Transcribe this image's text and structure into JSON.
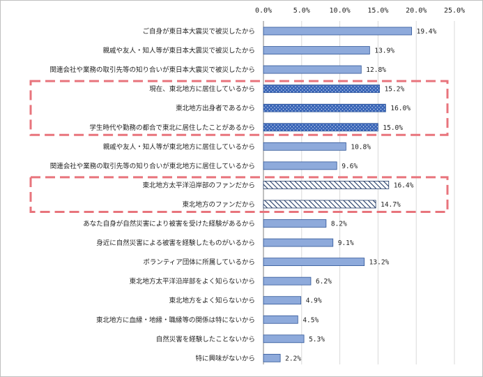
{
  "chart_data": {
    "type": "bar",
    "orientation": "horizontal",
    "categories": [
      "ご自身が東日本大震災で被災したから",
      "親戚や友人・知人等が東日本大震災で被災したから",
      "関連会社や業務の取引先等の知り合いが東日本大震災で被災したから",
      "現在、東北地方に居住しているから",
      "東北地方出身者であるから",
      "学生時代や勤務の都合で東北に居住したことがあるから",
      "親戚や友人・知人等が東北地方に居住しているから",
      "関連会社や業務の取引先等の知り合いが東北地方に居住しているから",
      "東北地方太平洋沿岸部のファンだから",
      "東北地方のファンだから",
      "あなた自身が自然災害により被害を受けた経験があるから",
      "身近に自然災害による被害を経験したものがいるから",
      "ボランティア団体に所属しているから",
      "東北地方太平洋沿岸部をよく知らないから",
      "東北地方をよく知らないから",
      "東北地方に血縁・地縁・職縁等の関係は特にないから",
      "自然災害を経験したことないから",
      "特に興味がないから"
    ],
    "values": [
      19.4,
      13.9,
      12.8,
      15.2,
      16.0,
      15.0,
      10.8,
      9.6,
      16.4,
      14.7,
      8.2,
      9.1,
      13.2,
      6.2,
      4.9,
      4.5,
      5.3,
      2.2
    ],
    "value_labels": [
      "19.4%",
      "13.9%",
      "12.8%",
      "15.2%",
      "16.0%",
      "15.0%",
      "10.8%",
      "9.6%",
      "16.4%",
      "14.7%",
      "8.2%",
      "9.1%",
      "13.2%",
      "6.2%",
      "4.9%",
      "4.5%",
      "5.3%",
      "2.2%"
    ],
    "bar_styles": [
      "solid",
      "solid",
      "solid",
      "dotted",
      "dotted",
      "dotted",
      "solid",
      "solid",
      "hatched",
      "hatched",
      "solid",
      "solid",
      "solid",
      "solid",
      "solid",
      "solid",
      "solid",
      "solid"
    ],
    "tick_labels": [
      "0.0%",
      "5.0%",
      "10.0%",
      "15.0%",
      "20.0%",
      "25.0%"
    ],
    "xlim": [
      0,
      25
    ],
    "x_axis_position": "top",
    "grid": true,
    "highlight_groups": [
      {
        "categories": [
          "現在、東北地方に居住しているから",
          "東北地方出身者であるから",
          "学生時代や勤務の都合で東北に居住したことがあるから"
        ],
        "style": "dashed-box"
      },
      {
        "categories": [
          "東北地方太平洋沿岸部のファンだから",
          "東北地方のファンだから"
        ],
        "style": "dashed-box"
      }
    ],
    "colors": {
      "bar_fill": "#8eaadb",
      "bar_stroke": "#2f5597",
      "dotted_fill": "#4472c4",
      "hatch_line": "#1f3864",
      "highlight_box": "#e8747c",
      "grid": "#d9d9d9",
      "axis": "#808080"
    }
  }
}
